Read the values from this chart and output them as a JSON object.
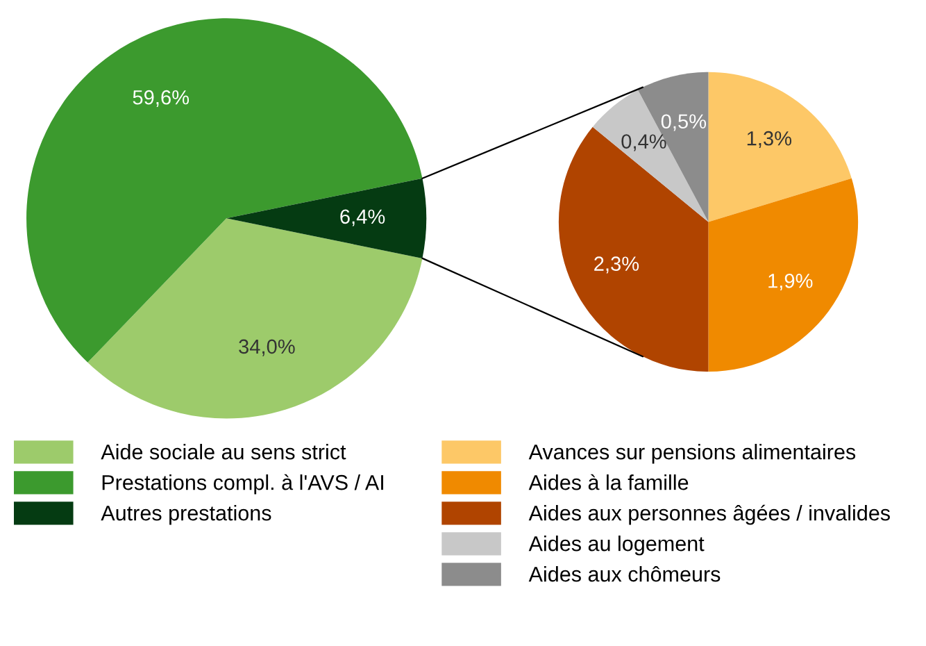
{
  "chart_data": [
    {
      "type": "pie",
      "categories": [
        "Aide sociale au sens strict",
        "Prestations compl. à l'AVS / AI",
        "Autres prestations"
      ],
      "values": [
        34.0,
        59.6,
        6.4
      ],
      "colors": [
        "#9dcb6b",
        "#3c9a2e",
        "#053b12"
      ],
      "value_labels": [
        "34,0%",
        "59,6%",
        "6,4%"
      ],
      "legend": "bottom"
    },
    {
      "type": "pie",
      "categories": [
        "Avances sur pensions alimentaires",
        "Aides à la famille",
        "Aides aux personnes âgées / invalides",
        "Aides au logement",
        "Aides aux chômeurs"
      ],
      "values": [
        1.3,
        1.9,
        2.3,
        0.4,
        0.5
      ],
      "colors": [
        "#fdc867",
        "#f08a00",
        "#b04400",
        "#c8c8c8",
        "#8c8c8c"
      ],
      "value_labels": [
        "1,3%",
        "1,9%",
        "2,3%",
        "0,4%",
        "0,5%"
      ],
      "legend": "bottom"
    }
  ]
}
